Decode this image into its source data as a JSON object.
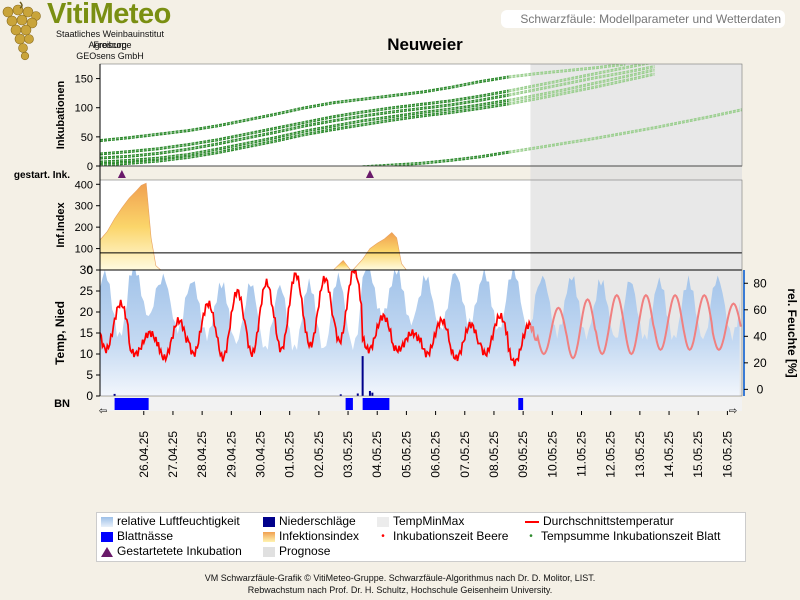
{
  "app": {
    "logo_title": "VitiMeteo",
    "logo_lines": [
      "Staatliches Weinbauinstitut Freiburg",
      "Agroscope",
      "GEOsens GmbH"
    ],
    "header_text": "Schwarzfäule: Modellparameter und Wetterdaten",
    "title": "Neuweier",
    "footer_lines": [
      "VM Schwarzfäule-Grafik © VitiMeteo-Gruppe. Schwarzfäule-Algorithmus nach Dr. D. Molitor, LIST.",
      "Rebwachstum nach Prof. Dr. H. Schultz, Hochschule Geisenheim University."
    ]
  },
  "colors": {
    "background": "#f4f0e6",
    "incubation": "#2e8b2e",
    "incubation_prognosis": "#9bcf8f",
    "humidity": "#9dc0e8",
    "temperature": "#ff0000",
    "temperature_prognosis": "#f08080",
    "precipitation": "#00008b",
    "leaf_wetness": "#0000ff",
    "started_marker": "#6a1a6a",
    "prognosis_shade": "#e0e0e0"
  },
  "chart_data": {
    "type": "line",
    "dates": [
      "26.04.25",
      "27.04.25",
      "28.04.25",
      "29.04.25",
      "30.04.25",
      "01.05.25",
      "02.05.25",
      "03.05.25",
      "04.05.25",
      "05.05.25",
      "06.05.25",
      "07.05.25",
      "08.05.25",
      "09.05.25",
      "10.05.25",
      "11.05.25",
      "12.05.25",
      "13.05.25",
      "14.05.25",
      "15.05.25",
      "16.05.25"
    ],
    "prognosis_start": "09.05.25 18:00",
    "panels": {
      "incubation": {
        "ylabel": "Inkubationen",
        "yticks": [
          0,
          50,
          100,
          150
        ],
        "ylim": [
          0,
          175
        ],
        "series": [
          {
            "start": "25.04.25",
            "values": [
              45,
              50,
              56,
              62,
              70,
              80,
              90,
              101,
              110,
              116,
              122,
              128,
              136,
              146,
              154,
              160,
              165,
              170,
              176
            ]
          },
          {
            "start": "25.04.25",
            "values": [
              22,
              26,
              31,
              38,
              46,
              56,
              66,
              76,
              86,
              94,
              101,
              107,
              113,
              121,
              130,
              140,
              150,
              160,
              170,
              180
            ]
          },
          {
            "start": "25.04.25",
            "values": [
              15,
              18,
              23,
              30,
              39,
              49,
              59,
              70,
              79,
              87,
              94,
              100,
              106,
              114,
              123,
              133,
              143,
              153,
              162,
              172
            ]
          },
          {
            "start": "25.04.25",
            "values": [
              8,
              11,
              15,
              21,
              30,
              40,
              50,
              61,
              70,
              79,
              86,
              93,
              99,
              106,
              114,
              123,
              133,
              144,
              155,
              166
            ]
          },
          {
            "start": "25.04.25",
            "values": [
              3,
              6,
              10,
              16,
              24,
              34,
              44,
              55,
              64,
              72,
              80,
              87,
              93,
              100,
              108,
              117,
              127,
              137,
              148,
              159
            ]
          },
          {
            "start": "04.05.25",
            "values": [
              0,
              3,
              6,
              11,
              17,
              25,
              33,
              41,
              49,
              58,
              67,
              77,
              87,
              98
            ]
          }
        ],
        "row_label": "gestart. Ink.",
        "started_marker_dates": [
          "25.04.25 18:00",
          "04.05.25 06:00"
        ]
      },
      "infection_index": {
        "ylabel": "Inf.Index",
        "yticks": [
          0,
          100,
          200,
          300,
          400
        ],
        "ylim": [
          0,
          420
        ],
        "threshold": 80,
        "events": [
          {
            "x": [
              "25.04.25 00:00",
              "25.04.25 06:00",
              "25.04.25 12:00",
              "25.04.25 18:00",
              "26.04.25 00:00",
              "26.04.25 06:00",
              "26.04.25 10:00",
              "26.04.25 14:00",
              "26.04.25 18:00",
              "26.04.25 22:00",
              "27.04.25 02:00"
            ],
            "y": [
              140,
              180,
              240,
              290,
              335,
              370,
              395,
              405,
              150,
              20,
              0
            ]
          },
          {
            "x": [
              "03.05.25 00:00",
              "03.05.25 08:00",
              "03.05.25 14:00"
            ],
            "y": [
              0,
              45,
              0
            ]
          },
          {
            "x": [
              "03.05.25 16:00",
              "04.05.25 00:00",
              "04.05.25 06:00",
              "04.05.25 12:00",
              "04.05.25 18:00",
              "05.05.25 00:00",
              "05.05.25 04:00",
              "05.05.25 08:00",
              "05.05.25 12:00"
            ],
            "y": [
              0,
              50,
              100,
              125,
              145,
              175,
              150,
              30,
              0
            ]
          }
        ]
      },
      "weather": {
        "ylabel_left": "Temp, Nied",
        "ylabel_right": "rel. Feuchte [%]",
        "yticks_left": [
          0,
          5,
          10,
          15,
          20,
          25,
          30
        ],
        "ylim_left": [
          0,
          30
        ],
        "yticks_right": [
          0,
          20,
          40,
          60,
          80
        ],
        "ylim_right": [
          -5,
          90
        ],
        "temperature_daily": [
          {
            "date": "25.04.25",
            "min": 11,
            "max": 22
          },
          {
            "date": "26.04.25",
            "min": 10,
            "max": 15
          },
          {
            "date": "27.04.25",
            "min": 9,
            "max": 18
          },
          {
            "date": "28.04.25",
            "min": 10,
            "max": 22
          },
          {
            "date": "29.04.25",
            "min": 9,
            "max": 25
          },
          {
            "date": "30.04.25",
            "min": 10,
            "max": 27
          },
          {
            "date": "01.05.25",
            "min": 11,
            "max": 29
          },
          {
            "date": "02.05.25",
            "min": 12,
            "max": 28
          },
          {
            "date": "03.05.25",
            "min": 13,
            "max": 30
          },
          {
            "date": "04.05.25",
            "min": 11,
            "max": 19
          },
          {
            "date": "05.05.25",
            "min": 11,
            "max": 15
          },
          {
            "date": "06.05.25",
            "min": 10,
            "max": 18
          },
          {
            "date": "07.05.25",
            "min": 9,
            "max": 17
          },
          {
            "date": "08.05.25",
            "min": 10,
            "max": 19
          },
          {
            "date": "09.05.25",
            "min": 8,
            "max": 17
          },
          {
            "date": "10.05.25",
            "min": 10,
            "max": 21
          },
          {
            "date": "11.05.25",
            "min": 9,
            "max": 23
          },
          {
            "date": "12.05.25",
            "min": 10,
            "max": 24
          },
          {
            "date": "13.05.25",
            "min": 10,
            "max": 24
          },
          {
            "date": "14.05.25",
            "min": 11,
            "max": 24
          },
          {
            "date": "15.05.25",
            "min": 11,
            "max": 24
          },
          {
            "date": "16.05.25",
            "min": 11,
            "max": 22
          }
        ],
        "humidity_daily": [
          {
            "date": "25.04.25",
            "min": 40,
            "max": 88
          },
          {
            "date": "26.04.25",
            "min": 55,
            "max": 92
          },
          {
            "date": "27.04.25",
            "min": 45,
            "max": 85
          },
          {
            "date": "28.04.25",
            "min": 40,
            "max": 82
          },
          {
            "date": "29.04.25",
            "min": 35,
            "max": 80
          },
          {
            "date": "30.04.25",
            "min": 30,
            "max": 80
          },
          {
            "date": "01.05.25",
            "min": 30,
            "max": 78
          },
          {
            "date": "02.05.25",
            "min": 30,
            "max": 80
          },
          {
            "date": "03.05.25",
            "min": 32,
            "max": 85
          },
          {
            "date": "04.05.25",
            "min": 55,
            "max": 92
          },
          {
            "date": "05.05.25",
            "min": 50,
            "max": 90
          },
          {
            "date": "06.05.25",
            "min": 45,
            "max": 85
          },
          {
            "date": "07.05.25",
            "min": 50,
            "max": 88
          },
          {
            "date": "08.05.25",
            "min": 45,
            "max": 88
          },
          {
            "date": "09.05.25",
            "min": 45,
            "max": 90
          },
          {
            "date": "10.05.25",
            "min": 42,
            "max": 85
          },
          {
            "date": "11.05.25",
            "min": 40,
            "max": 85
          },
          {
            "date": "12.05.25",
            "min": 38,
            "max": 82
          },
          {
            "date": "13.05.25",
            "min": 38,
            "max": 82
          },
          {
            "date": "14.05.25",
            "min": 38,
            "max": 82
          },
          {
            "date": "15.05.25",
            "min": 38,
            "max": 82
          },
          {
            "date": "16.05.25",
            "min": 40,
            "max": 84
          }
        ],
        "precipitation": [
          {
            "x": "25.04.25 12:00",
            "mm": 0.5
          },
          {
            "x": "03.05.25 06:00",
            "mm": 0.4
          },
          {
            "x": "03.05.25 20:00",
            "mm": 0.6
          },
          {
            "x": "04.05.25 00:00",
            "mm": 9.5
          },
          {
            "x": "04.05.25 06:00",
            "mm": 1.2
          },
          {
            "x": "04.05.25 08:00",
            "mm": 0.8
          }
        ]
      },
      "leaf_wetness": {
        "label": "BN",
        "intervals": [
          {
            "start": "25.04.25 12:00",
            "end": "26.04.25 16:00"
          },
          {
            "start": "03.05.25 10:00",
            "end": "03.05.25 16:00"
          },
          {
            "start": "04.05.25 00:00",
            "end": "04.05.25 22:00"
          },
          {
            "start": "09.05.25 08:00",
            "end": "09.05.25 12:00"
          }
        ]
      }
    },
    "legend": [
      {
        "label": "relative Luftfeuchtigkeit",
        "icon": "humidity-swatch"
      },
      {
        "label": "Niederschläge",
        "icon": "precipitation-swatch"
      },
      {
        "label": "TempMinMax",
        "icon": "tempminmax-swatch"
      },
      {
        "label": "Durchschnittstemperatur",
        "icon": "temperature-line"
      },
      {
        "label": "Blattnässe",
        "icon": "leaf-wetness-swatch"
      },
      {
        "label": "Infektionsindex",
        "icon": "infection-index-swatch"
      },
      {
        "label": "Inkubationszeit Beere",
        "icon": "red-dot"
      },
      {
        "label": "Tempsumme Inkubationszeit Blatt",
        "icon": "green-dot"
      },
      {
        "label": "Gestartetete Inkubation",
        "icon": "triangle-marker"
      },
      {
        "label": "Prognose",
        "icon": "prognosis-swatch"
      }
    ]
  }
}
